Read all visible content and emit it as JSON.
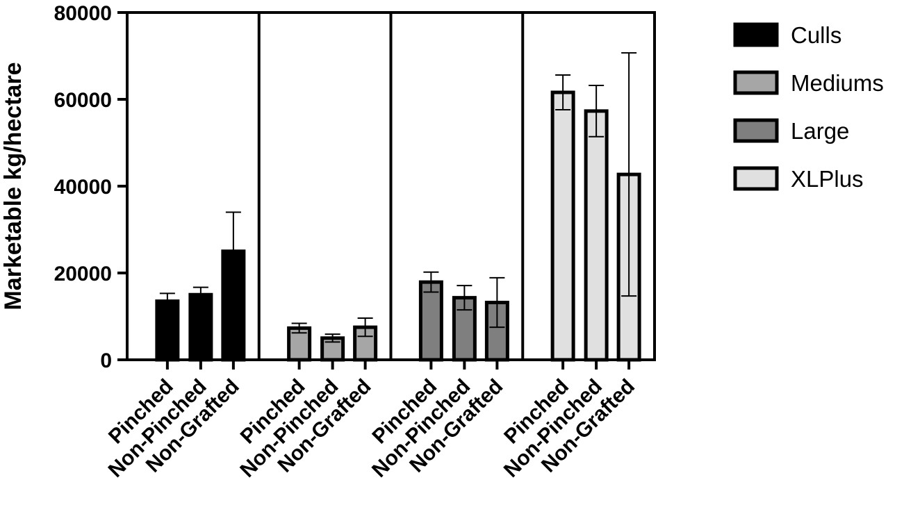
{
  "chart_data": {
    "type": "bar",
    "title": "",
    "xlabel": "",
    "ylabel": "Marketable kg/hectare",
    "ylim": [
      0,
      80000
    ],
    "yticks": [
      0,
      20000,
      40000,
      60000,
      80000
    ],
    "ytick_labels": [
      "0",
      "20000",
      "40000",
      "60000",
      "80000"
    ],
    "categories": [
      "Pinched",
      "Non-Pinched",
      "Non-Grafted"
    ],
    "grid": false,
    "legend_position": "right",
    "series": [
      {
        "name": "Culls",
        "color": "#000000",
        "values": [
          13500,
          15000,
          25000
        ],
        "errors": [
          1800,
          1700,
          9000
        ]
      },
      {
        "name": "Mediums",
        "color": "#a6a6a6",
        "values": [
          7300,
          5000,
          7500
        ],
        "errors": [
          1100,
          900,
          2100
        ]
      },
      {
        "name": "Large",
        "color": "#7f7f7f",
        "values": [
          17900,
          14300,
          13200
        ],
        "errors": [
          2300,
          2800,
          5700
        ]
      },
      {
        "name": "XLPlus",
        "color": "#e0e0e0",
        "values": [
          61600,
          57300,
          42700
        ],
        "errors": [
          4000,
          5900,
          28000
        ]
      }
    ]
  }
}
